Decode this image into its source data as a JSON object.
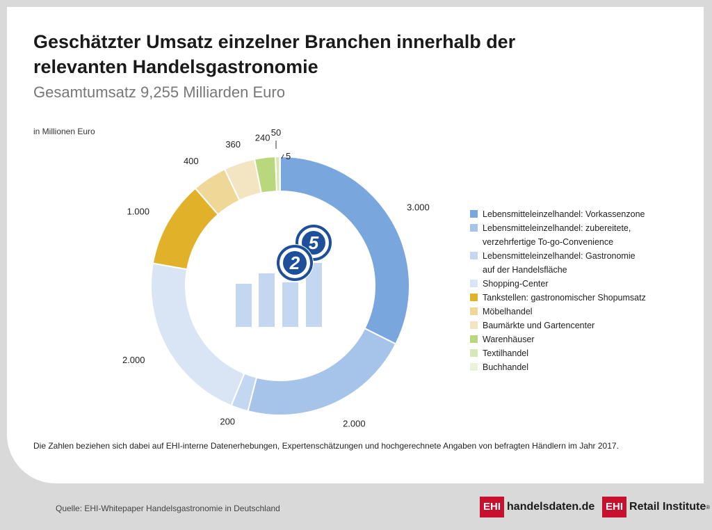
{
  "header": {
    "title": "Geschätzter Umsatz einzelner Branchen innerhalb der relevanten Handelsgastronomie",
    "subtitle": "Gesamtumsatz 9,255 Milliarden Euro",
    "unit": "in Millionen Euro"
  },
  "chart_data": {
    "type": "pie",
    "variant": "donut",
    "title": "Geschätzter Umsatz einzelner Branchen innerhalb der relevanten Handelsgastronomie",
    "subtitle": "Gesamtumsatz 9,255 Milliarden Euro",
    "unit": "in Millionen Euro",
    "legend_position": "right",
    "slices": [
      {
        "label": "Lebensmitteleinzelhandel: Vorkassenzone",
        "value": 3000,
        "value_label": "3.000",
        "color": "#7aa6de"
      },
      {
        "label": "Lebensmitteleinzelhandel: zubereitete, verzehrfertige To-go-Convenience",
        "value": 2000,
        "value_label": "2.000",
        "color": "#a6c4ea"
      },
      {
        "label": "Lebensmitteleinzelhandel: Gastronomie auf der Handelsfläche",
        "value": 200,
        "value_label": "200",
        "color": "#c3d7f1"
      },
      {
        "label": "Shopping-Center",
        "value": 2000,
        "value_label": "2.000",
        "color": "#d9e5f5"
      },
      {
        "label": "Tankstellen: gastronomischer Shopumsatz",
        "value": 1000,
        "value_label": "1.000",
        "color": "#e2b12a"
      },
      {
        "label": "Möbelhandel",
        "value": 400,
        "value_label": "400",
        "color": "#efd797"
      },
      {
        "label": "Baumärkte und Gartencenter",
        "value": 360,
        "value_label": "360",
        "color": "#f4e5c2"
      },
      {
        "label": "Warenhäuser",
        "value": 240,
        "value_label": "240",
        "color": "#b9d77c"
      },
      {
        "label": "Textilhandel",
        "value": 50,
        "value_label": "50",
        "color": "#d6e7b8"
      },
      {
        "label": "Buchhandel",
        "value": 5,
        "value_label": "5",
        "color": "#ebf2dc"
      }
    ],
    "center_icon": "euro-coins-bar-chart-icon",
    "coin_labels": [
      "2",
      "5"
    ]
  },
  "legend": {
    "items": [
      {
        "line1": "Lebensmitteleinzelhandel: Vorkassenzone",
        "line2": ""
      },
      {
        "line1": "Lebensmitteleinzelhandel: zubereitete,",
        "line2": "verzehrfertige To-go-Convenience"
      },
      {
        "line1": "Lebensmitteleinzelhandel: Gastronomie",
        "line2": "auf der Handelsfläche"
      },
      {
        "line1": "Shopping-Center",
        "line2": ""
      },
      {
        "line1": "Tankstellen: gastronomischer Shopumsatz",
        "line2": ""
      },
      {
        "line1": "Möbelhandel",
        "line2": ""
      },
      {
        "line1": "Baumärkte und Gartencenter",
        "line2": ""
      },
      {
        "line1": "Warenhäuser",
        "line2": ""
      },
      {
        "line1": "Textilhandel",
        "line2": ""
      },
      {
        "line1": "Buchhandel",
        "line2": ""
      }
    ]
  },
  "footer": {
    "note": "Die Zahlen beziehen sich dabei auf EHI-interne Datenerhebungen, Expertenschätzungen und hochgerechnete Angaben von befragten Händlern im Jahr 2017.",
    "source": "Quelle: EHI-Whitepaper Handelsgastronomie in Deutschland",
    "logo1_box": "EHI",
    "logo1_text": "handelsdaten.de",
    "logo2_box": "EHI",
    "logo2_text": "Retail Institute",
    "logo2_reg": "®"
  },
  "colors": {
    "icon_bars": "#c3d7f1",
    "coin_blue": "#1e4f9a"
  }
}
